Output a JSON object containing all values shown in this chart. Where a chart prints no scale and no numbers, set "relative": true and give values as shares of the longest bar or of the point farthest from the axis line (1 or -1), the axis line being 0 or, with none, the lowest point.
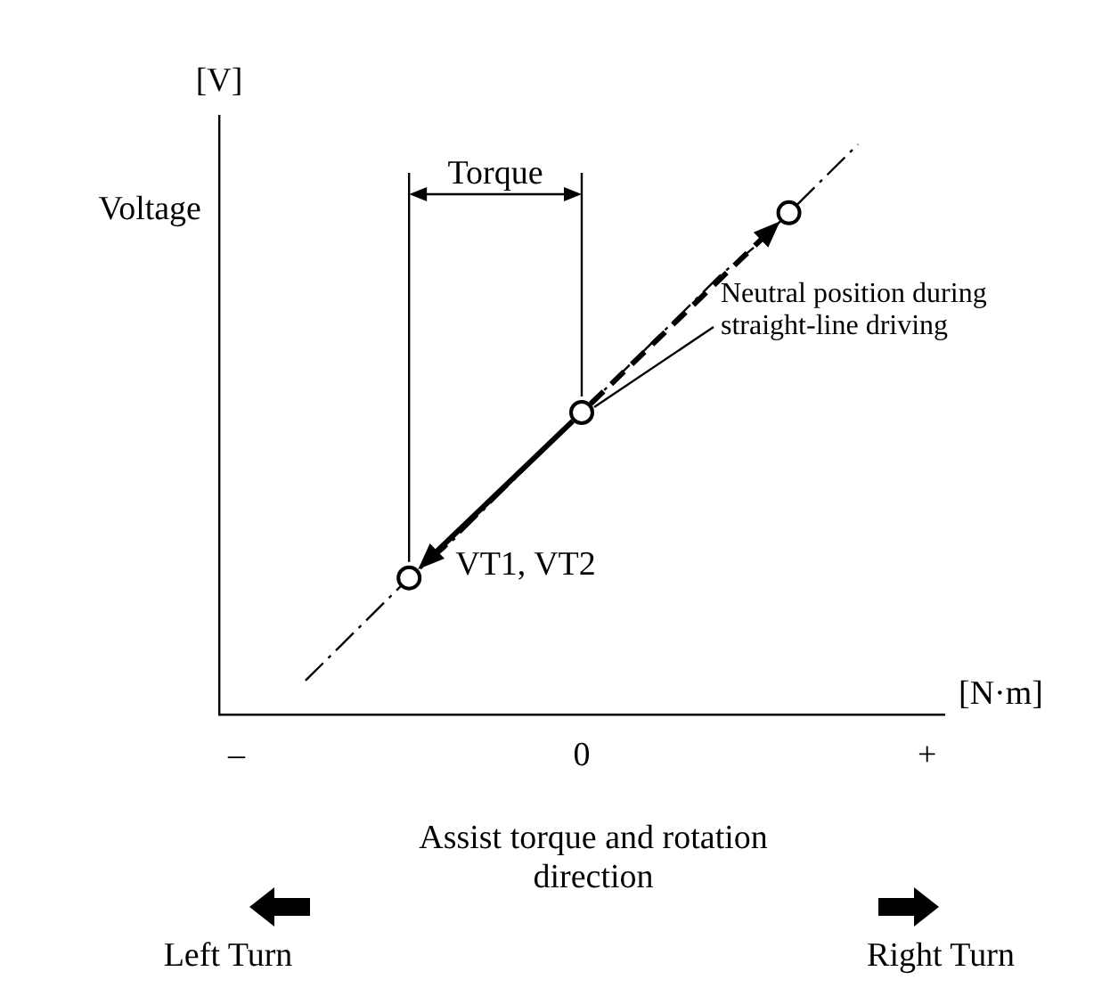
{
  "chart_data": {
    "type": "line",
    "relative": true,
    "xlabel": "[N·m]",
    "ylabel": "Voltage",
    "categories": [
      "–",
      null,
      null,
      null,
      null,
      null,
      null,
      null,
      null,
      null,
      "0",
      null,
      null,
      null,
      null,
      null,
      null,
      null,
      null,
      null,
      "+"
    ],
    "grid": false,
    "legend": false,
    "series": [
      {
        "color": "#000000",
        "line_style": "dashed",
        "values": [
          null,
          null,
          0.06,
          0.12,
          0.18,
          0.24,
          0.29,
          0.35,
          0.41,
          0.47,
          0.53,
          0.59,
          0.65,
          0.71,
          0.77,
          0.82,
          0.88,
          0.94,
          1.0,
          null,
          null
        ]
      },
      {
        "type": "scatter",
        "color": "#000000",
        "marker": "circle",
        "values": [
          null,
          null,
          null,
          null,
          null,
          0.24,
          null,
          null,
          null,
          null,
          0.53,
          null,
          null,
          null,
          null,
          null,
          0.88,
          null,
          null,
          null,
          null
        ]
      }
    ],
    "annotations": [
      "Torque",
      "Neutral position during straight-line driving",
      "VT1, VT2",
      "[V]",
      "Assist torque and rotation direction",
      "Left Turn",
      "Right Turn"
    ]
  }
}
